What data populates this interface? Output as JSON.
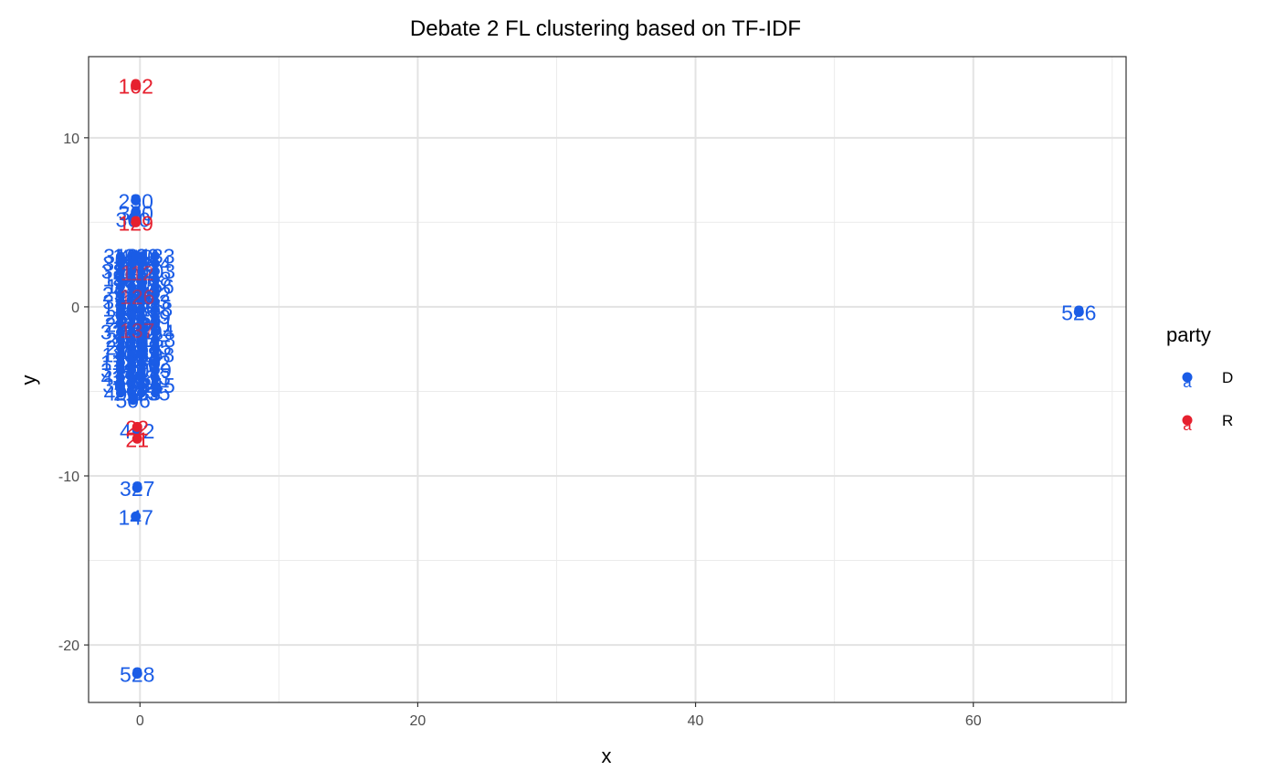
{
  "chart_data": {
    "type": "scatter",
    "title": "Debate 2 FL clustering based on TF-IDF",
    "xlabel": "x",
    "ylabel": "y",
    "xlim": [
      -3.7,
      71
    ],
    "ylim": [
      -23.4,
      14.8
    ],
    "x_ticks": [
      0,
      20,
      40,
      60
    ],
    "x_tick_labels": [
      "0",
      "20",
      "40",
      "60"
    ],
    "x_minor_ticks": [
      10,
      30,
      50,
      70
    ],
    "y_ticks": [
      -20,
      -10,
      0,
      10
    ],
    "y_tick_labels": [
      "-20",
      "-10",
      "0",
      "10"
    ],
    "y_minor_ticks": [
      -15,
      -5,
      5
    ],
    "grid": true,
    "legend": {
      "title": "party",
      "position": "right",
      "entries": [
        {
          "label": "D",
          "color": "#1a5ce6"
        },
        {
          "label": "R",
          "color": "#e6202e"
        }
      ]
    },
    "colors": {
      "D": "#1a5ce6",
      "R": "#e6202e"
    },
    "cluster_range": {
      "x": [
        -1.5,
        1.2
      ],
      "y": [
        -5.5,
        3.0
      ]
    },
    "series": [
      {
        "name": "D",
        "points": [
          {
            "x": -0.3,
            "y": 6.3,
            "label": "230"
          },
          {
            "x": -0.3,
            "y": 5.6,
            "label": "360"
          },
          {
            "x": -0.5,
            "y": 5.2,
            "label": "360"
          },
          {
            "x": -0.3,
            "y": 3.0,
            "label": "410"
          },
          {
            "x": -0.5,
            "y": -5.5,
            "label": "506"
          },
          {
            "x": -0.2,
            "y": -7.3,
            "label": "442"
          },
          {
            "x": -0.2,
            "y": -10.7,
            "label": "327"
          },
          {
            "x": -0.3,
            "y": -12.4,
            "label": "147"
          },
          {
            "x": -0.2,
            "y": -21.7,
            "label": "528"
          },
          {
            "x": 67.6,
            "y": -0.3,
            "label": "526"
          }
        ]
      },
      {
        "name": "R",
        "points": [
          {
            "x": -0.3,
            "y": 13.1,
            "label": "102"
          },
          {
            "x": -0.3,
            "y": 5.0,
            "label": "129"
          },
          {
            "x": -0.2,
            "y": -7.1,
            "label": "22"
          },
          {
            "x": -0.2,
            "y": -7.8,
            "label": "21"
          }
        ]
      }
    ]
  }
}
